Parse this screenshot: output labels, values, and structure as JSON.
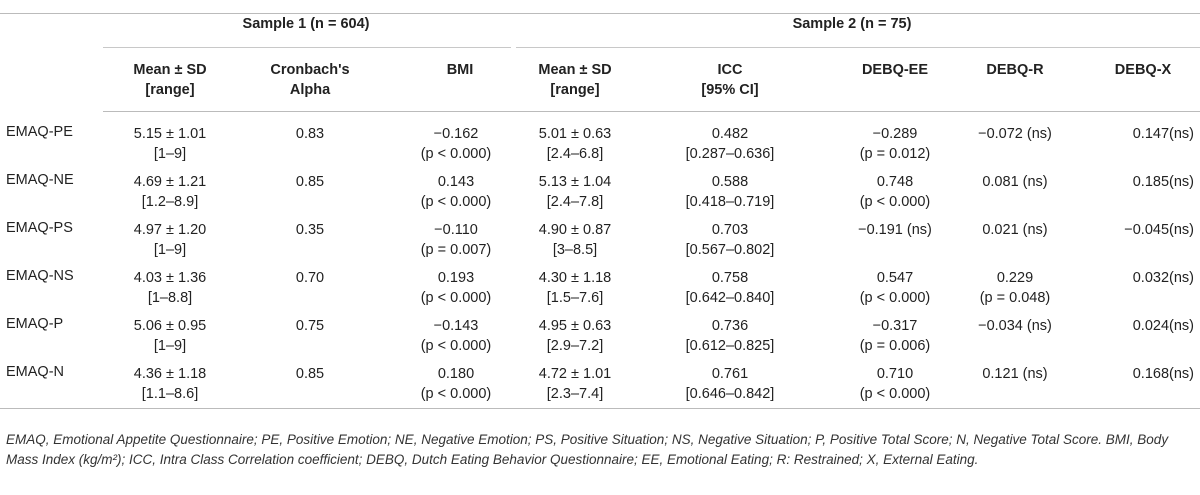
{
  "groups": {
    "sample1": "Sample 1 (n = 604)",
    "sample2": "Sample 2 (n = 75)"
  },
  "columns": {
    "mean1_a": "Mean ± SD",
    "mean1_b": "[range]",
    "alpha_a": "Cronbach's",
    "alpha_b": "Alpha",
    "bmi": "BMI",
    "mean2_a": "Mean ± SD",
    "mean2_b": "[range]",
    "icc_a": "ICC",
    "icc_b": "[95% CI]",
    "ee": "DEBQ-EE",
    "r": "DEBQ-R",
    "x": "DEBQ-X"
  },
  "rows": [
    {
      "label": "EMAQ-PE",
      "m1": "5.15 ± 1.01",
      "r1": "[1–9]",
      "alpha": "0.83",
      "bmi": "−0.162",
      "bmip": "(p < 0.000)",
      "m2": "5.01 ± 0.63",
      "r2": "[2.4–6.8]",
      "icc": "0.482",
      "ci": "[0.287–0.636]",
      "ee": "−0.289",
      "eep": "(p = 0.012)",
      "r": "−0.072 (ns)",
      "rp": "",
      "x": "0.147(ns)"
    },
    {
      "label": "EMAQ-NE",
      "m1": "4.69 ± 1.21",
      "r1": "[1.2–8.9]",
      "alpha": "0.85",
      "bmi": "0.143",
      "bmip": "(p < 0.000)",
      "m2": "5.13 ± 1.04",
      "r2": "[2.4–7.8]",
      "icc": "0.588",
      "ci": "[0.418–0.719]",
      "ee": "0.748",
      "eep": "(p < 0.000)",
      "r": "0.081 (ns)",
      "rp": "",
      "x": "0.185(ns)"
    },
    {
      "label": "EMAQ-PS",
      "m1": "4.97 ± 1.20",
      "r1": "[1–9]",
      "alpha": "0.35",
      "bmi": "−0.110",
      "bmip": "(p = 0.007)",
      "m2": "4.90 ± 0.87",
      "r2": "[3–8.5]",
      "icc": "0.703",
      "ci": "[0.567–0.802]",
      "ee": "−0.191 (ns)",
      "eep": "",
      "r": "0.021 (ns)",
      "rp": "",
      "x": "−0.045(ns)"
    },
    {
      "label": "EMAQ-NS",
      "m1": "4.03 ± 1.36",
      "r1": "[1–8.8]",
      "alpha": "0.70",
      "bmi": "0.193",
      "bmip": "(p < 0.000)",
      "m2": "4.30 ± 1.18",
      "r2": "[1.5–7.6]",
      "icc": "0.758",
      "ci": "[0.642–0.840]",
      "ee": "0.547",
      "eep": "(p < 0.000)",
      "r": "0.229",
      "rp": "(p = 0.048)",
      "x": "0.032(ns)"
    },
    {
      "label": "EMAQ-P",
      "m1": "5.06 ± 0.95",
      "r1": "[1–9]",
      "alpha": "0.75",
      "bmi": "−0.143",
      "bmip": "(p < 0.000)",
      "m2": "4.95 ± 0.63",
      "r2": "[2.9–7.2]",
      "icc": "0.736",
      "ci": "[0.612–0.825]",
      "ee": "−0.317",
      "eep": "(p = 0.006)",
      "r": "−0.034 (ns)",
      "rp": "",
      "x": "0.024(ns)"
    },
    {
      "label": "EMAQ-N",
      "m1": "4.36 ± 1.18",
      "r1": "[1.1–8.6]",
      "alpha": "0.85",
      "bmi": "0.180",
      "bmip": "(p < 0.000)",
      "m2": "4.72 ± 1.01",
      "r2": "[2.3–7.4]",
      "icc": "0.761",
      "ci": "[0.646–0.842]",
      "ee": "0.710",
      "eep": "(p < 0.000)",
      "r": "0.121 (ns)",
      "rp": "",
      "x": "0.168(ns)"
    }
  ],
  "footnote": "EMAQ, Emotional Appetite Questionnaire; PE, Positive Emotion; NE, Negative Emotion; PS, Positive Situation; NS, Negative Situation; P, Positive Total Score; N, Negative Total Score. BMI, Body Mass Index (kg/m²); ICC, Intra Class Correlation coefficient; DEBQ, Dutch Eating Behavior Questionnaire; EE, Emotional Eating; R: Restrained; X, External Eating."
}
